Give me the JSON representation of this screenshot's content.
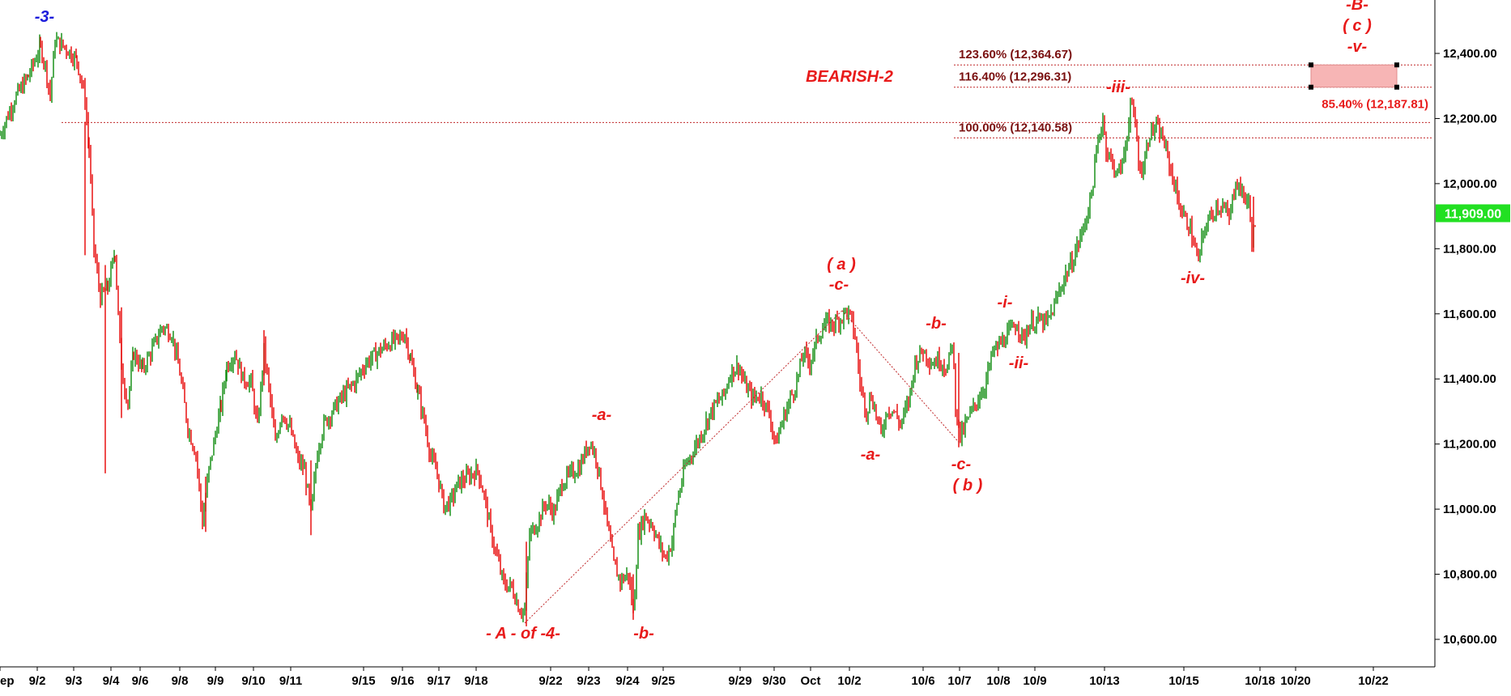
{
  "chart_data": {
    "type": "candlestick",
    "title": "",
    "xlabel": "",
    "ylabel": "",
    "ylim": [
      10500,
      12770
    ],
    "y_ticks": [
      10600,
      10800,
      11000,
      11200,
      11400,
      11600,
      11800,
      12000,
      12200,
      12400
    ],
    "y_tick_labels": [
      "10,600.00",
      "10,800.00",
      "11,000.00",
      "11,200.00",
      "11,400.00",
      "11,600.00",
      "11,800.00",
      "12,000.00",
      "12,200.00",
      "12,400.00"
    ],
    "x_tick_labels": [
      "ep",
      "9/2",
      "9/3",
      "9/4",
      "9/6",
      "9/8",
      "9/9",
      "9/10",
      "9/11",
      "9/15",
      "9/16",
      "9/17",
      "9/18",
      "9/22",
      "9/23",
      "9/24",
      "9/25",
      "9/29",
      "9/30",
      "Oct",
      "10/2",
      "10/6",
      "10/7",
      "10/8",
      "10/9",
      "10/13",
      "10/15",
      "10/18",
      "10/20",
      "10/22"
    ],
    "x_tick_pos": [
      0,
      46,
      91,
      137,
      173,
      222,
      266,
      313,
      359,
      449,
      497,
      542,
      588,
      680,
      727,
      775,
      819,
      914,
      956,
      1001,
      1049,
      1140,
      1185,
      1233,
      1278,
      1364,
      1462,
      1556,
      1600,
      1696
    ],
    "x_domain": [
      0,
      1770
    ],
    "path": [
      [
        0,
        12150
      ],
      [
        18,
        12260
      ],
      [
        35,
        12330
      ],
      [
        50,
        12420
      ],
      [
        56,
        12360
      ],
      [
        62,
        12270
      ],
      [
        68,
        12440
      ],
      [
        80,
        12420
      ],
      [
        95,
        12380
      ],
      [
        105,
        12260
      ],
      [
        110,
        12100
      ],
      [
        116,
        11800
      ],
      [
        124,
        11650
      ],
      [
        133,
        11680
      ],
      [
        142,
        11790
      ],
      [
        150,
        11420
      ],
      [
        158,
        11330
      ],
      [
        165,
        11480
      ],
      [
        176,
        11430
      ],
      [
        188,
        11490
      ],
      [
        200,
        11560
      ],
      [
        212,
        11540
      ],
      [
        222,
        11420
      ],
      [
        232,
        11250
      ],
      [
        242,
        11170
      ],
      [
        250,
        10960
      ],
      [
        258,
        11120
      ],
      [
        266,
        11230
      ],
      [
        273,
        11320
      ],
      [
        280,
        11440
      ],
      [
        290,
        11480
      ],
      [
        300,
        11400
      ],
      [
        310,
        11390
      ],
      [
        318,
        11250
      ],
      [
        326,
        11490
      ],
      [
        334,
        11330
      ],
      [
        340,
        11200
      ],
      [
        348,
        11300
      ],
      [
        358,
        11250
      ],
      [
        368,
        11150
      ],
      [
        376,
        11120
      ],
      [
        384,
        10980
      ],
      [
        392,
        11180
      ],
      [
        400,
        11260
      ],
      [
        410,
        11300
      ],
      [
        424,
        11350
      ],
      [
        438,
        11390
      ],
      [
        452,
        11450
      ],
      [
        466,
        11480
      ],
      [
        480,
        11510
      ],
      [
        492,
        11520
      ],
      [
        500,
        11540
      ],
      [
        507,
        11460
      ],
      [
        516,
        11360
      ],
      [
        524,
        11270
      ],
      [
        532,
        11160
      ],
      [
        540,
        11110
      ],
      [
        548,
        11010
      ],
      [
        556,
        11020
      ],
      [
        566,
        11080
      ],
      [
        578,
        11100
      ],
      [
        590,
        11120
      ],
      [
        598,
        11040
      ],
      [
        606,
        10930
      ],
      [
        614,
        10850
      ],
      [
        622,
        10770
      ],
      [
        632,
        10760
      ],
      [
        642,
        10690
      ],
      [
        648,
        10690
      ],
      [
        654,
        10920
      ],
      [
        664,
        10960
      ],
      [
        674,
        11020
      ],
      [
        684,
        10990
      ],
      [
        694,
        11080
      ],
      [
        706,
        11110
      ],
      [
        716,
        11130
      ],
      [
        728,
        11210
      ],
      [
        736,
        11160
      ],
      [
        744,
        11050
      ],
      [
        750,
        10950
      ],
      [
        758,
        10830
      ],
      [
        766,
        10780
      ],
      [
        776,
        10800
      ],
      [
        782,
        10680
      ],
      [
        788,
        10920
      ],
      [
        796,
        10980
      ],
      [
        806,
        10950
      ],
      [
        814,
        10890
      ],
      [
        822,
        10850
      ],
      [
        830,
        10900
      ],
      [
        836,
        11020
      ],
      [
        846,
        11130
      ],
      [
        856,
        11180
      ],
      [
        866,
        11230
      ],
      [
        876,
        11290
      ],
      [
        886,
        11330
      ],
      [
        894,
        11350
      ],
      [
        902,
        11420
      ],
      [
        912,
        11440
      ],
      [
        920,
        11380
      ],
      [
        930,
        11340
      ],
      [
        940,
        11350
      ],
      [
        950,
        11290
      ],
      [
        958,
        11200
      ],
      [
        966,
        11270
      ],
      [
        976,
        11340
      ],
      [
        984,
        11390
      ],
      [
        992,
        11480
      ],
      [
        1000,
        11450
      ],
      [
        1010,
        11530
      ],
      [
        1020,
        11570
      ],
      [
        1030,
        11570
      ],
      [
        1040,
        11590
      ],
      [
        1044,
        11610
      ],
      [
        1050,
        11590
      ],
      [
        1056,
        11530
      ],
      [
        1062,
        11390
      ],
      [
        1070,
        11300
      ],
      [
        1076,
        11350
      ],
      [
        1082,
        11290
      ],
      [
        1088,
        11230
      ],
      [
        1096,
        11310
      ],
      [
        1104,
        11300
      ],
      [
        1112,
        11260
      ],
      [
        1122,
        11330
      ],
      [
        1130,
        11450
      ],
      [
        1140,
        11490
      ],
      [
        1150,
        11450
      ],
      [
        1160,
        11460
      ],
      [
        1170,
        11430
      ],
      [
        1176,
        11520
      ],
      [
        1180,
        11320
      ],
      [
        1186,
        11220
      ],
      [
        1196,
        11280
      ],
      [
        1206,
        11330
      ],
      [
        1216,
        11380
      ],
      [
        1226,
        11480
      ],
      [
        1236,
        11510
      ],
      [
        1246,
        11540
      ],
      [
        1256,
        11570
      ],
      [
        1264,
        11520
      ],
      [
        1272,
        11570
      ],
      [
        1282,
        11580
      ],
      [
        1292,
        11570
      ],
      [
        1300,
        11610
      ],
      [
        1308,
        11670
      ],
      [
        1316,
        11720
      ],
      [
        1324,
        11760
      ],
      [
        1332,
        11820
      ],
      [
        1340,
        11880
      ],
      [
        1348,
        11970
      ],
      [
        1356,
        12130
      ],
      [
        1362,
        12200
      ],
      [
        1366,
        12110
      ],
      [
        1372,
        12070
      ],
      [
        1380,
        12030
      ],
      [
        1386,
        12060
      ],
      [
        1392,
        12150
      ],
      [
        1396,
        12250
      ],
      [
        1402,
        12180
      ],
      [
        1408,
        12030
      ],
      [
        1414,
        12080
      ],
      [
        1420,
        12160
      ],
      [
        1428,
        12170
      ],
      [
        1436,
        12140
      ],
      [
        1444,
        12060
      ],
      [
        1452,
        11980
      ],
      [
        1458,
        11920
      ],
      [
        1464,
        11890
      ],
      [
        1470,
        11860
      ],
      [
        1476,
        11800
      ],
      [
        1480,
        11760
      ],
      [
        1484,
        11820
      ],
      [
        1490,
        11880
      ],
      [
        1496,
        11900
      ],
      [
        1502,
        11930
      ],
      [
        1510,
        11930
      ],
      [
        1518,
        11890
      ],
      [
        1526,
        12010
      ],
      [
        1534,
        11970
      ],
      [
        1542,
        11940
      ],
      [
        1546,
        11830
      ],
      [
        1552,
        11900
      ]
    ],
    "price_label": "11,909.00",
    "price_value": 11909,
    "fib_levels": [
      {
        "label": "123.60% (12,364.67)",
        "value": 12364.67
      },
      {
        "label": "116.40% (12,296.31)",
        "value": 12296.31
      },
      {
        "label": "100.00% (12,140.58)",
        "value": 12140.58
      },
      {
        "label": "85.40% (12,187.81)",
        "value": 12187.81
      }
    ],
    "target_zone": {
      "from": 12296.31,
      "to": 12364.67
    },
    "annotations": [
      {
        "text": "-3-",
        "color": "#1a1adb"
      },
      {
        "text": "- A - of -4-",
        "color": "#e81a1a"
      },
      {
        "text": "-a-",
        "color": "#e81a1a"
      },
      {
        "text": "-b-",
        "color": "#e81a1a"
      },
      {
        "text": "( a )",
        "color": "#e81a1a"
      },
      {
        "text": "-c-",
        "color": "#e81a1a"
      },
      {
        "text": "-a-",
        "color": "#e81a1a"
      },
      {
        "text": "-b-",
        "color": "#e81a1a"
      },
      {
        "text": "-c-",
        "color": "#e81a1a"
      },
      {
        "text": "( b )",
        "color": "#e81a1a"
      },
      {
        "text": "-i-",
        "color": "#e81a1a"
      },
      {
        "text": "-ii-",
        "color": "#e81a1a"
      },
      {
        "text": "-iii-",
        "color": "#e81a1a"
      },
      {
        "text": "-iv-",
        "color": "#e81a1a"
      },
      {
        "text": "-B-",
        "color": "#e81a1a"
      },
      {
        "text": "( c )",
        "color": "#e81a1a"
      },
      {
        "text": "-v-",
        "color": "#e81a1a"
      },
      {
        "text": "BEARISH-2",
        "color": "#e81a1a"
      }
    ],
    "colors": {
      "up": "#0a8a0a",
      "down": "#e60000",
      "fib_line": "#c0282a",
      "fib_text": "#7a1010",
      "zone": "#f7b5b5",
      "price_tag": "#22e022"
    },
    "grid": false,
    "legend": "none"
  }
}
